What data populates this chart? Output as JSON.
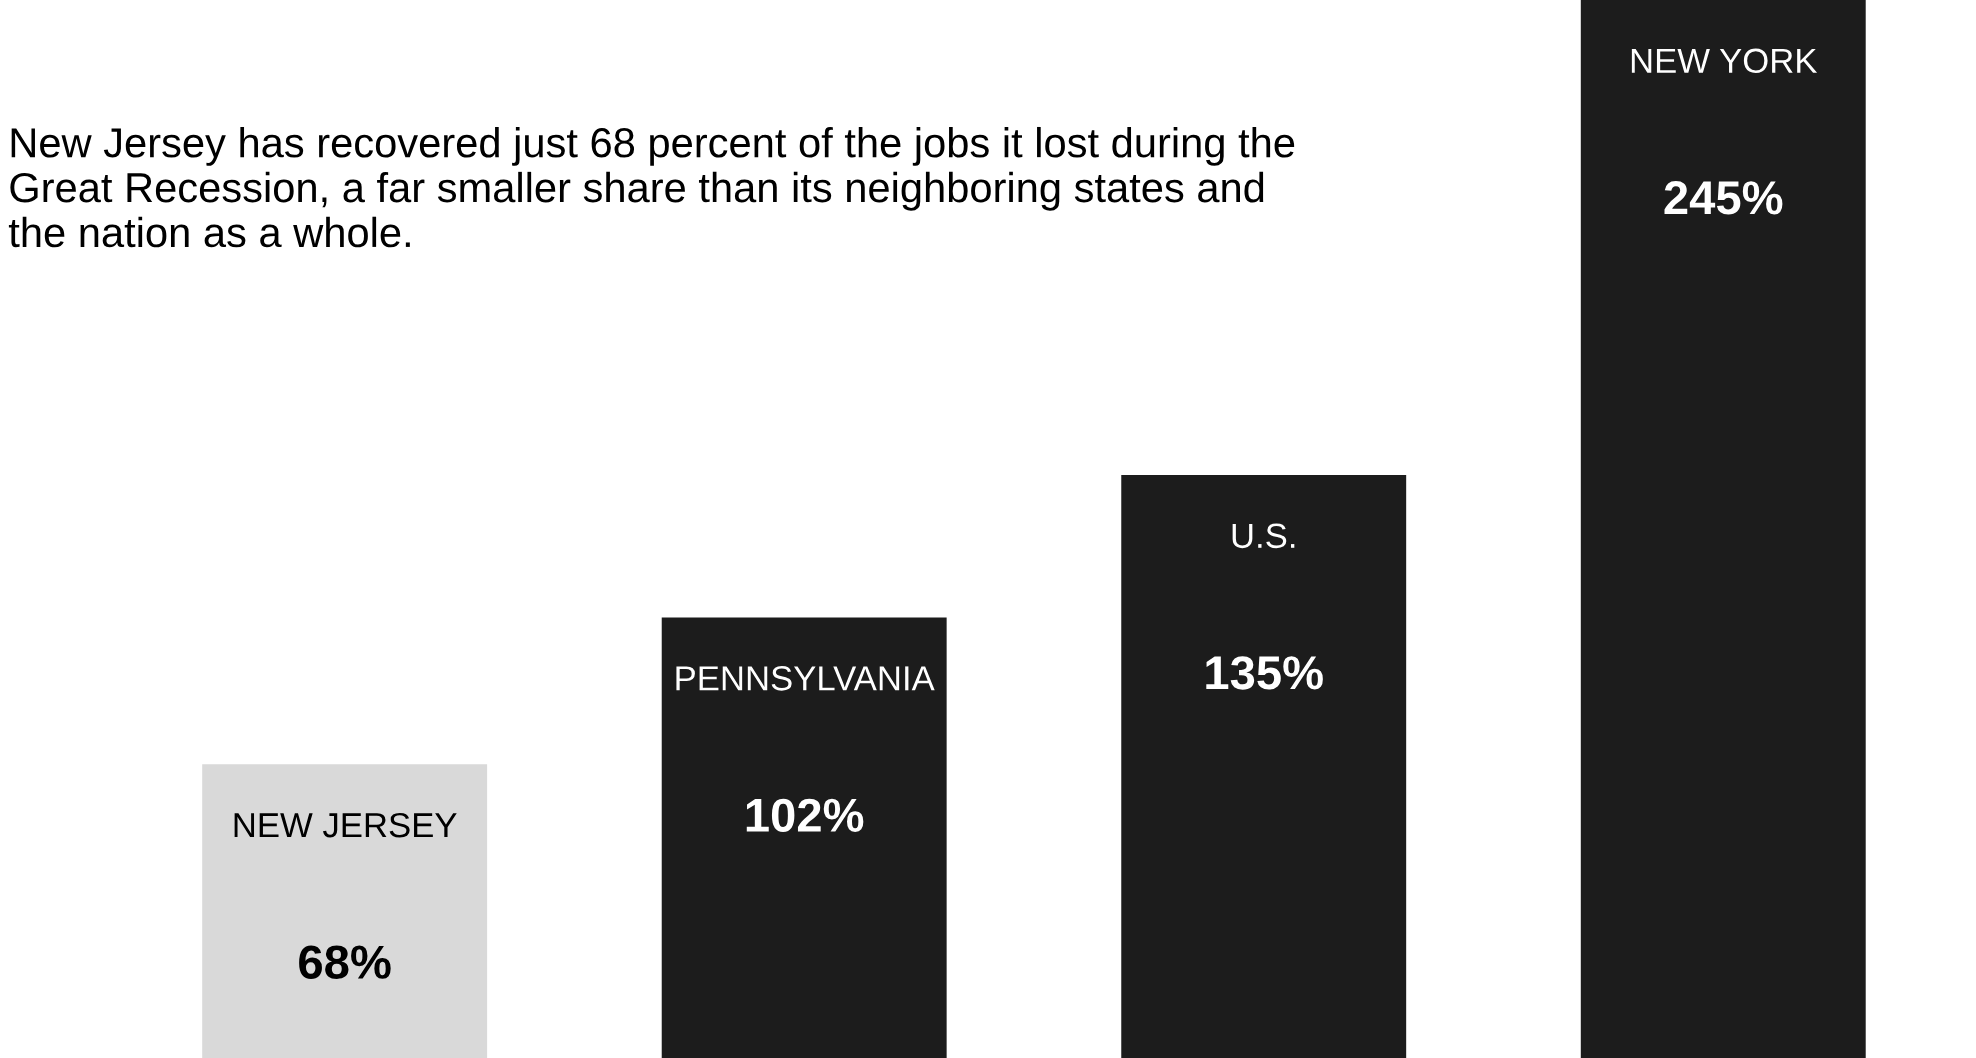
{
  "chart_data": {
    "type": "bar",
    "categories": [
      "NEW JERSEY",
      "PENNSYLVANIA",
      "U.S.",
      "NEW YORK"
    ],
    "values": [
      68,
      102,
      135,
      245
    ],
    "colors": [
      "#d9d9d9",
      "#1c1c1c",
      "#1c1c1c",
      "#1c1c1c"
    ],
    "value_labels": [
      "68%",
      "102%",
      "135%",
      "245%"
    ],
    "annotations": [
      "New Jersey has recovered just 68 percent of the jobs it lost during the Great Recession, a far smaller share than its neighboring states and the nation as a whole."
    ],
    "legend": false
  }
}
